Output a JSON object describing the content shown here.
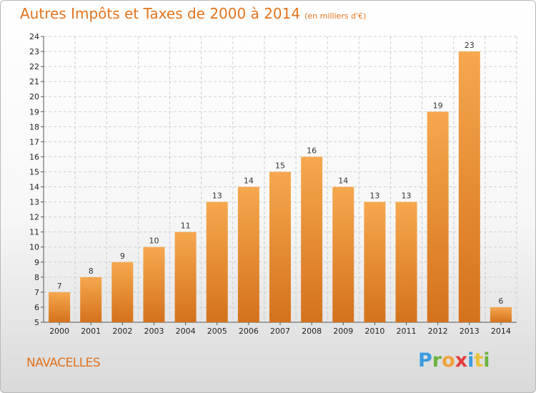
{
  "title": "Autres Impôts et Taxes de 2000 à 2014",
  "unit": "(en milliers d'€)",
  "commune": "NAVACELLES",
  "logo": [
    "P",
    "r",
    "o",
    "x",
    "i",
    "t",
    "i"
  ],
  "colors": {
    "bar_light": "#f6a84e",
    "bar_dark": "#d4721c",
    "title": "#e0741f",
    "grid": "#cfcfcf"
  },
  "chart_data": {
    "type": "bar",
    "title": "Autres Impôts et Taxes de 2000 à 2014",
    "subtitle": "(en milliers d'€)",
    "categories": [
      "2000",
      "2001",
      "2002",
      "2003",
      "2004",
      "2005",
      "2006",
      "2007",
      "2008",
      "2009",
      "2010",
      "2011",
      "2012",
      "2013",
      "2014"
    ],
    "values": [
      7,
      8,
      9,
      10,
      11,
      13,
      14,
      15,
      16,
      14,
      13,
      13,
      19,
      23,
      6
    ],
    "ylim": [
      5,
      24
    ],
    "yticks": [
      5,
      6,
      7,
      8,
      9,
      10,
      11,
      12,
      13,
      14,
      15,
      16,
      17,
      18,
      19,
      20,
      21,
      22,
      23,
      24
    ],
    "grid": true,
    "xlabel": "",
    "ylabel": ""
  }
}
